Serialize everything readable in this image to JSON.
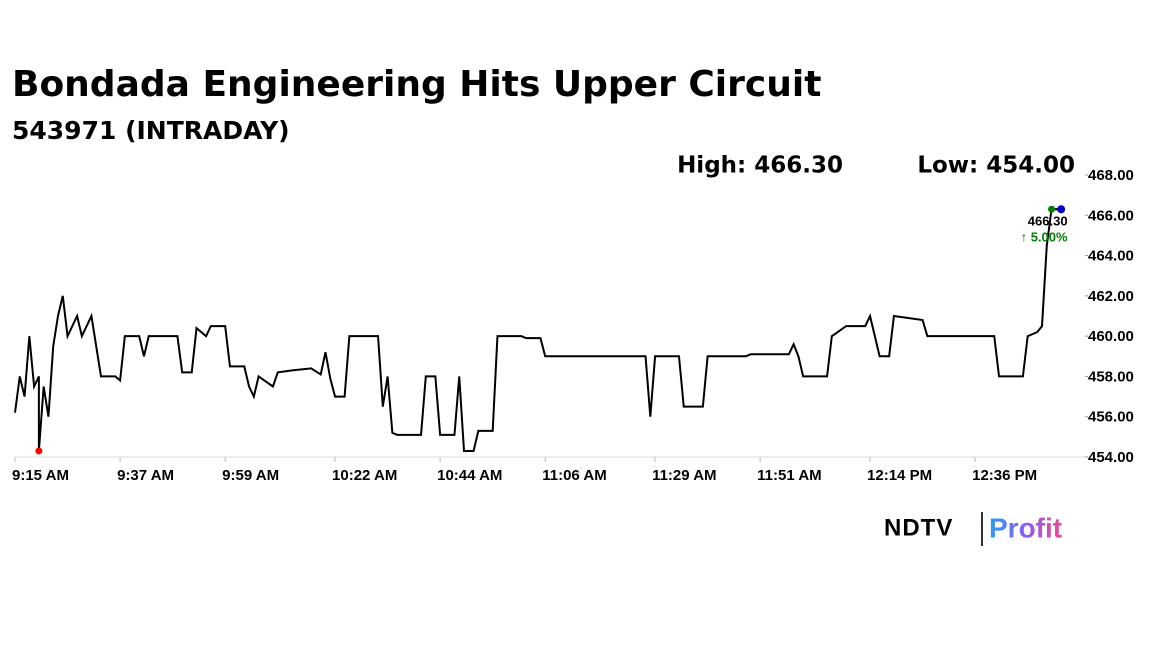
{
  "chart_data": {
    "type": "line",
    "title": "Bondada Engineering Hits Upper Circuit",
    "subtitle": "543971 (INTRADAY)",
    "high_text": "High: 466.30",
    "low_text": "Low: 454.00",
    "last_label": "466.30",
    "change_label": "↑ 5.00%",
    "logo_left": "NDTV",
    "logo_right": "Profit",
    "x": [
      "9:15 AM",
      "9:16 AM",
      "9:17 AM",
      "9:18 AM",
      "9:19 AM",
      "9:20 AM",
      "9:20 AM",
      "9:21 AM",
      "9:22 AM",
      "9:23 AM",
      "9:24 AM",
      "9:25 AM",
      "9:26 AM",
      "9:28 AM",
      "9:29 AM",
      "9:31 AM",
      "9:32 AM",
      "9:33 AM",
      "9:36 AM",
      "9:37 AM",
      "9:38 AM",
      "9:41 AM",
      "9:42 AM",
      "9:43 AM",
      "9:49 AM",
      "9:50 AM",
      "9:52 AM",
      "9:53 AM",
      "9:55 AM",
      "9:56 AM",
      "9:59 AM",
      "10:00 AM",
      "10:03 AM",
      "10:04 AM",
      "10:05 AM",
      "10:06 AM",
      "10:09 AM",
      "10:10 AM",
      "10:13 AM",
      "10:17 AM",
      "10:19 AM",
      "10:20 AM",
      "10:21 AM",
      "10:22 AM",
      "10:24 AM",
      "10:25 AM",
      "10:31 AM",
      "10:32 AM",
      "10:33 AM",
      "10:34 AM",
      "10:35 AM",
      "10:40 AM",
      "10:41 AM",
      "10:43 AM",
      "10:44 AM",
      "10:47 AM",
      "10:48 AM",
      "10:49 AM",
      "10:51 AM",
      "10:52 AM",
      "10:55 AM",
      "10:56 AM",
      "11:01 AM",
      "11:02 AM",
      "11:05 AM",
      "11:06 AM",
      "11:27 AM",
      "11:28 AM",
      "11:29 AM",
      "11:34 AM",
      "11:35 AM",
      "11:39 AM",
      "11:40 AM",
      "11:48 AM",
      "11:49 AM",
      "11:57 AM",
      "11:58 AM",
      "11:59 AM",
      "12:00 PM",
      "12:05 PM",
      "12:06 PM",
      "12:09 PM",
      "12:13 PM",
      "12:14 PM",
      "12:16 PM",
      "12:18 PM",
      "12:19 PM",
      "12:25 PM",
      "12:26 PM",
      "12:40 PM",
      "12:41 PM",
      "12:46 PM",
      "12:47 PM",
      "12:49 PM",
      "12:50 PM",
      "12:51 PM",
      "12:52 PM",
      "12:54 PM"
    ],
    "series": [
      {
        "color": "#000000",
        "values": [
          456.2,
          458,
          457,
          460,
          457.5,
          458,
          454.3,
          457.5,
          456,
          459.5,
          461,
          462,
          460,
          461,
          460,
          461,
          459.5,
          458,
          458,
          457.8,
          460,
          460,
          459,
          460,
          460,
          458.2,
          458.2,
          460.4,
          460,
          460.5,
          460.5,
          458.5,
          458.5,
          457.5,
          457,
          458,
          457.5,
          458.2,
          458.3,
          458.4,
          458.1,
          459.2,
          457.9,
          457,
          457,
          460,
          460,
          456.5,
          458,
          455.2,
          455.1,
          455.1,
          458,
          458,
          455.1,
          455.1,
          458,
          454.3,
          454.3,
          455.3,
          455.3,
          460,
          460,
          459.9,
          459.9,
          459,
          459,
          456,
          459,
          459,
          456.5,
          456.5,
          459,
          459,
          459.1,
          459.1,
          459.6,
          459,
          458,
          458,
          460,
          460.5,
          460.5,
          461,
          459,
          459,
          461,
          460.8,
          460,
          460,
          458,
          458,
          460,
          460.2,
          460.5,
          464.5,
          466.3,
          466.3
        ]
      }
    ],
    "low_color": "#ff0000",
    "high_color": "#008000",
    "last_color": "#0000cc",
    "change_color": "#008000",
    "xlim": [
      "9:15 AM",
      "12:59 PM"
    ],
    "xticks": [
      "9:15 AM",
      "9:37 AM",
      "9:59 AM",
      "10:22 AM",
      "10:44 AM",
      "11:06 AM",
      "11:29 AM",
      "11:51 AM",
      "12:14 PM",
      "12:36 PM"
    ],
    "ylim": [
      454,
      468
    ],
    "yticks": [
      {
        "value": 454,
        "label": "454.00"
      },
      {
        "value": 456,
        "label": "456.00"
      },
      {
        "value": 458,
        "label": "458.00"
      },
      {
        "value": 460,
        "label": "460.00"
      },
      {
        "value": 462,
        "label": "462.00"
      },
      {
        "value": 464,
        "label": "464.00"
      },
      {
        "value": 466,
        "label": "466.00"
      },
      {
        "value": 468,
        "label": "468.00"
      }
    ]
  }
}
